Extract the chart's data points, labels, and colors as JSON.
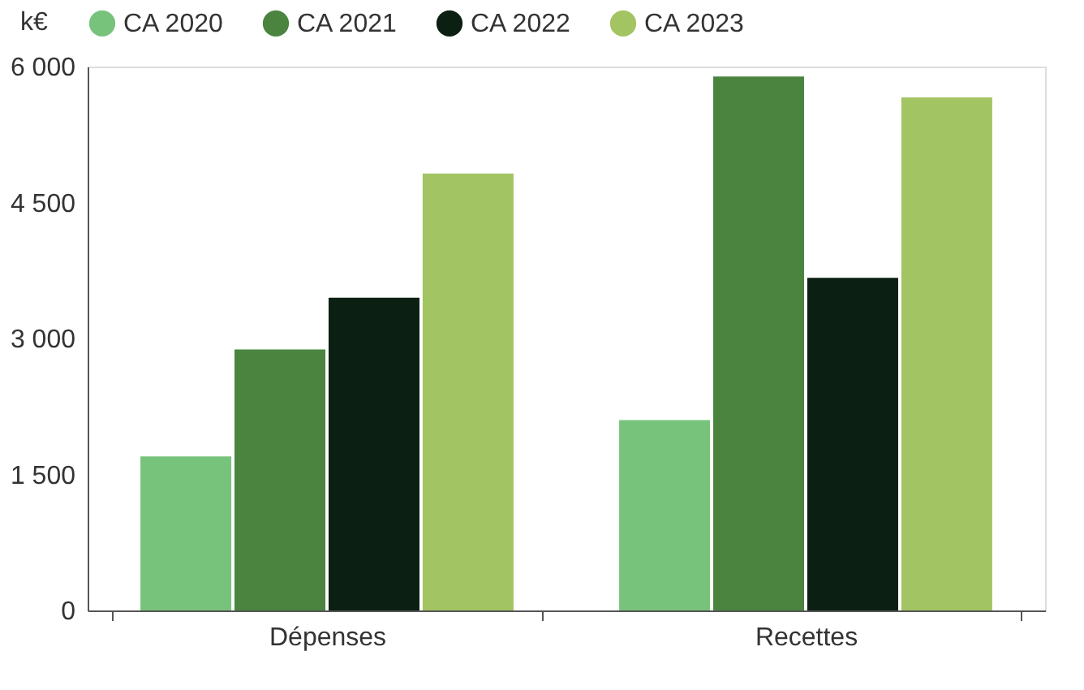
{
  "chart_data": {
    "type": "bar",
    "ylabel": "k€",
    "categories": [
      "Dépenses",
      "Recettes"
    ],
    "series": [
      {
        "name": "CA 2020",
        "color": "#78c37c",
        "values": [
          1700,
          2100
        ]
      },
      {
        "name": "CA 2021",
        "color": "#4a843f",
        "values": [
          2880,
          5890
        ]
      },
      {
        "name": "CA 2022",
        "color": "#0b1f12",
        "values": [
          3450,
          3670
        ]
      },
      {
        "name": "CA 2023",
        "color": "#a3c463",
        "values": [
          4820,
          5660
        ]
      }
    ],
    "ylim": [
      0,
      6000
    ],
    "yticks": [
      {
        "value": 0,
        "label": "0"
      },
      {
        "value": 1500,
        "label": "1 500"
      },
      {
        "value": 3000,
        "label": "3 000"
      },
      {
        "value": 4500,
        "label": "4 500"
      },
      {
        "value": 6000,
        "label": "6 000"
      }
    ],
    "grid": false,
    "legend": "top"
  }
}
